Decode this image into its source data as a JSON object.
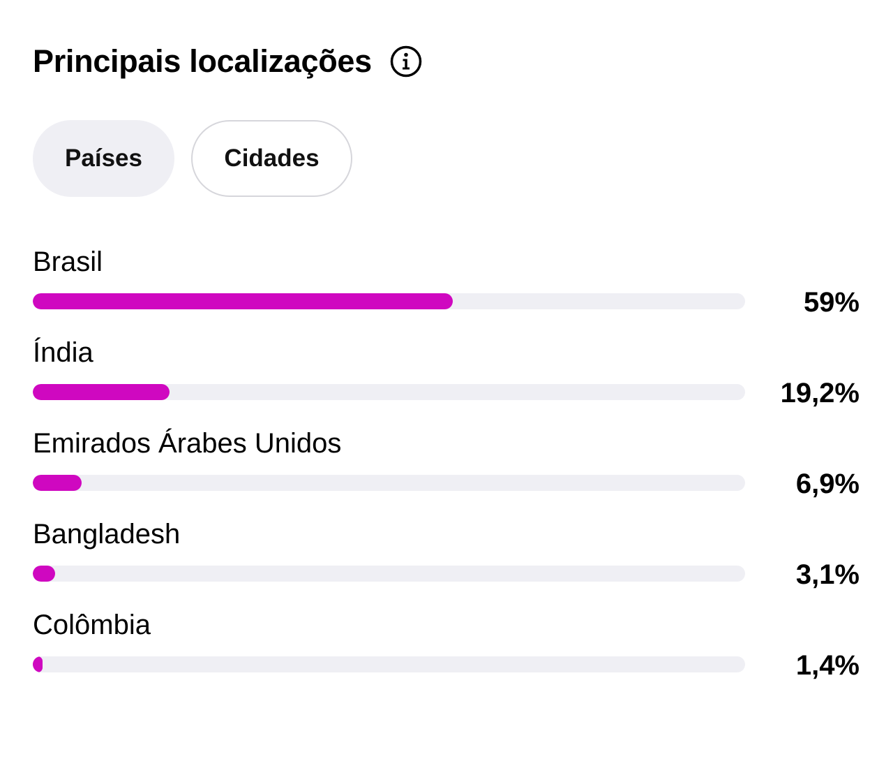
{
  "header": {
    "title": "Principais localizações",
    "info_icon": "info-circle-icon"
  },
  "tabs": [
    {
      "label": "Países",
      "active": true
    },
    {
      "label": "Cidades",
      "active": false
    }
  ],
  "colors": {
    "bar_fill": "#cf08c0",
    "bar_track": "#efeff4",
    "active_tab_bg": "#efeff4",
    "inactive_tab_border": "#d6d6db"
  },
  "locations": [
    {
      "name": "Brasil",
      "value": 59,
      "value_label": "59%"
    },
    {
      "name": "Índia",
      "value": 19.2,
      "value_label": "19,2%"
    },
    {
      "name": "Emirados Árabes Unidos",
      "value": 6.9,
      "value_label": "6,9%"
    },
    {
      "name": "Bangladesh",
      "value": 3.1,
      "value_label": "3,1%"
    },
    {
      "name": "Colômbia",
      "value": 1.4,
      "value_label": "1,4%"
    }
  ]
}
